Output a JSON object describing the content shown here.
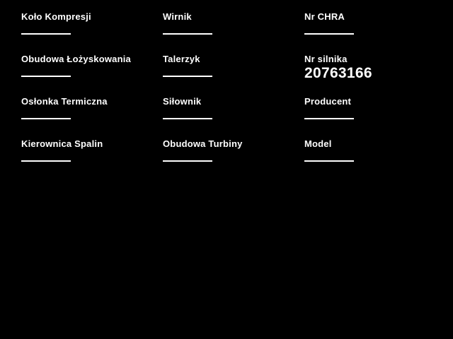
{
  "page": {
    "background_color": "#000000",
    "text_color": "#ffffff"
  },
  "form": {
    "fields": [
      {
        "label": "Koło Kompresji",
        "value": ""
      },
      {
        "label": "Wirnik",
        "value": ""
      },
      {
        "label": "Nr CHRA",
        "value": ""
      },
      {
        "label": "Obudowa Łożyskowania",
        "value": ""
      },
      {
        "label": "Talerzyk",
        "value": ""
      },
      {
        "label": "Nr silnika",
        "value": "20763166"
      },
      {
        "label": "Osłonka Termiczna",
        "value": ""
      },
      {
        "label": "Siłownik",
        "value": ""
      },
      {
        "label": "Producent",
        "value": ""
      },
      {
        "label": "Kierownica Spalin",
        "value": ""
      },
      {
        "label": "Obudowa Turbiny",
        "value": ""
      },
      {
        "label": "Model",
        "value": ""
      }
    ]
  }
}
